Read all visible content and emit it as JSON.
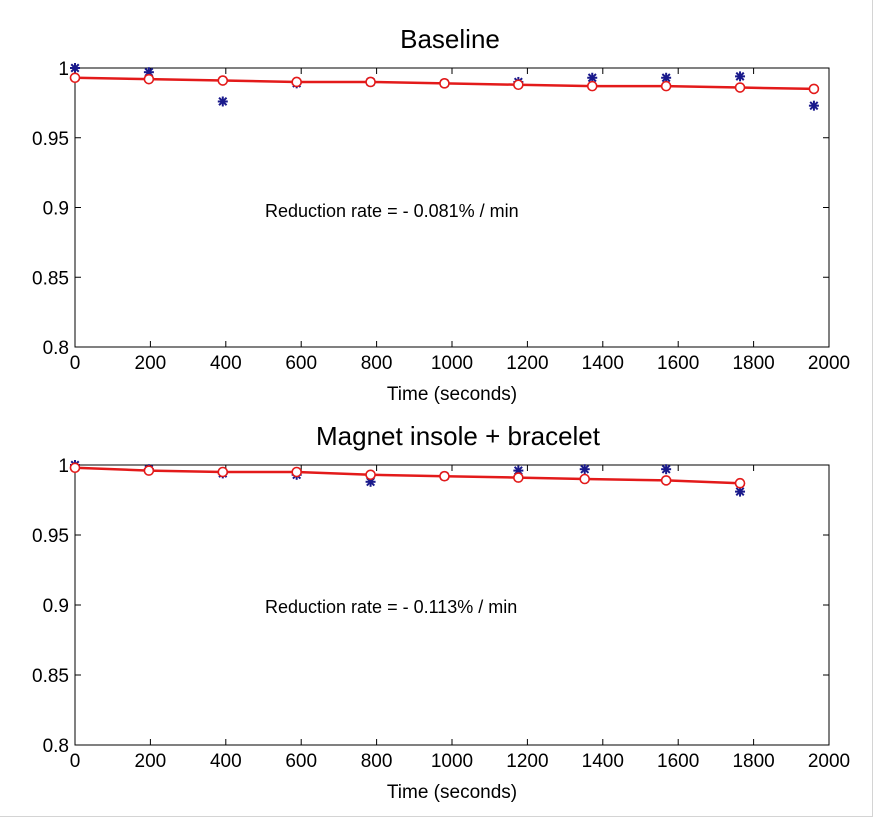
{
  "chart_data": [
    {
      "type": "scatter",
      "title": "Baseline",
      "xlabel": "Time (seconds)",
      "ylabel": "",
      "xlim": [
        0,
        2000
      ],
      "ylim": [
        0.8,
        1.0
      ],
      "xticks": [
        "0",
        "200",
        "400",
        "600",
        "800",
        "1000",
        "1200",
        "1400",
        "1600",
        "1800",
        "2000"
      ],
      "yticks": [
        "0.8",
        "0.85",
        "0.9",
        "0.95",
        "1"
      ],
      "annotation": "Reduction rate = - 0.081% / min",
      "grid": false,
      "series": [
        {
          "marker": "asterisk",
          "color": "#1a1a8c",
          "x": [
            0,
            196,
            392,
            588,
            784,
            980,
            1176,
            1372,
            1568,
            1764,
            1960
          ],
          "y": [
            1.0,
            0.997,
            0.976,
            0.989,
            0.99,
            0.989,
            0.99,
            0.993,
            0.993,
            0.994,
            0.973
          ]
        },
        {
          "marker": "circle-line",
          "color": "#e31a1a",
          "x": [
            0,
            196,
            392,
            588,
            784,
            980,
            1176,
            1372,
            1568,
            1764,
            1960
          ],
          "y": [
            0.993,
            0.992,
            0.991,
            0.99,
            0.99,
            0.989,
            0.988,
            0.987,
            0.987,
            0.986,
            0.985
          ]
        }
      ]
    },
    {
      "type": "scatter",
      "title": "Magnet insole + bracelet",
      "xlabel": "Time (seconds)",
      "ylabel": "",
      "xlim": [
        0,
        2000
      ],
      "ylim": [
        0.8,
        1.0
      ],
      "xticks": [
        "0",
        "200",
        "400",
        "600",
        "800",
        "1000",
        "1200",
        "1400",
        "1600",
        "1800",
        "2000"
      ],
      "yticks": [
        "0.8",
        "0.85",
        "0.9",
        "0.95",
        "1"
      ],
      "annotation": "Reduction rate = - 0.113% / min",
      "grid": false,
      "series": [
        {
          "marker": "asterisk",
          "color": "#1a1a8c",
          "x": [
            0,
            196,
            392,
            588,
            784,
            980,
            1176,
            1352,
            1568,
            1764
          ],
          "y": [
            1.0,
            0.997,
            0.994,
            0.993,
            0.988,
            0.992,
            0.996,
            0.997,
            0.997,
            0.981
          ]
        },
        {
          "marker": "circle-line",
          "color": "#e31a1a",
          "x": [
            0,
            196,
            392,
            588,
            784,
            980,
            1176,
            1352,
            1568,
            1764
          ],
          "y": [
            0.998,
            0.996,
            0.995,
            0.995,
            0.993,
            0.992,
            0.991,
            0.99,
            0.989,
            0.987
          ]
        }
      ]
    }
  ]
}
